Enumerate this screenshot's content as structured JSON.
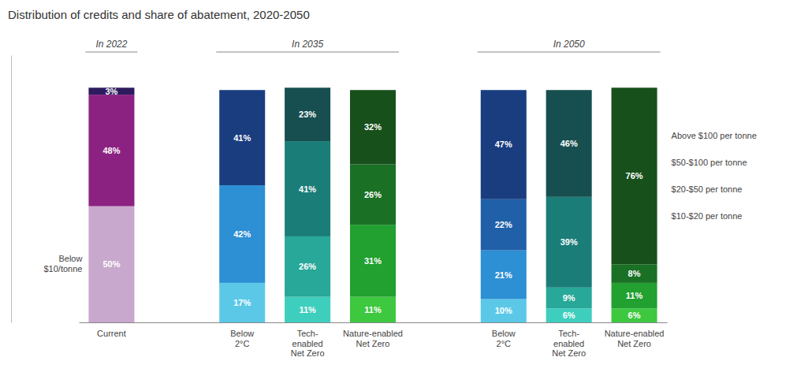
{
  "chart_data": {
    "type": "bar",
    "stacked": true,
    "data_labels": true,
    "grid": false,
    "tick_labels": "x",
    "title": "Distribution of credits and share of abatement, 2020-2050",
    "categories": [
      "Current",
      "Below\n2°C",
      "Tech-\nenabled\nNet Zero",
      "Nature-enabled\nNet Zero",
      "Below\n2°C",
      "Tech-\nenabled\nNet Zero",
      "Nature-enabled\nNet Zero"
    ],
    "groups": [
      {
        "label": "In 2022",
        "size": 1
      },
      {
        "label": "In 2035",
        "size": 3
      },
      {
        "label": "In 2050",
        "size": 3
      }
    ],
    "ylim": [
      0,
      115
    ],
    "yticks": [],
    "series": [
      {
        "values": [
          50,
          17,
          11,
          11,
          10,
          6,
          6
        ],
        "colors": [
          "#c8a8cc",
          "#5bc8e8",
          "#3ecebe",
          "#3ec840",
          "#5bc8e8",
          "#3ecebe",
          "#3ec840"
        ],
        "value_labels": [
          "50%",
          "17%",
          "11%",
          "11%",
          "10%",
          "6%",
          "6%"
        ]
      },
      {
        "values": [
          0,
          42,
          26,
          31,
          21,
          9,
          11
        ],
        "colors": [
          "#c8a8cc",
          "#2d8fd4",
          "#27a898",
          "#22a030",
          "#2d8fd4",
          "#27a898",
          "#22a030"
        ],
        "value_labels": [
          null,
          "42%",
          "26%",
          "31%",
          "21%",
          "9%",
          "11%"
        ]
      },
      {
        "values": [
          0,
          0,
          41,
          26,
          22,
          39,
          8
        ],
        "colors": [
          "#c8a8cc",
          "#2d8fd4",
          "#1b7d78",
          "#1a7025",
          "#2060a8",
          "#1b7d78",
          "#1a7025"
        ],
        "value_labels": [
          null,
          null,
          "41%",
          "26%",
          "22%",
          "39%",
          "8%"
        ]
      },
      {
        "values": [
          48,
          41,
          23,
          32,
          47,
          46,
          76
        ],
        "colors": [
          "#8b2282",
          "#1a3d80",
          "#174f50",
          "#18501c",
          "#1a3d80",
          "#174f50",
          "#18501c"
        ],
        "value_labels": [
          "48%",
          "41%",
          "23%",
          "32%",
          "47%",
          "46%",
          "76%"
        ]
      },
      {
        "values": [
          3,
          0,
          0,
          0,
          0,
          0,
          0
        ],
        "colors": [
          "#2d1b5e",
          "#1a3d80",
          "#174f50",
          "#18501c",
          "#1a3d80",
          "#174f50",
          "#18501c"
        ],
        "value_labels": [
          "3%",
          null,
          null,
          null,
          null,
          null,
          null
        ]
      }
    ],
    "annotations": [
      "Below\n$10/tonne",
      "Above $100 per tonne",
      "$50-$100 per tonne",
      "$20-$50 per tonne",
      "$10-$20 per tonne"
    ]
  }
}
